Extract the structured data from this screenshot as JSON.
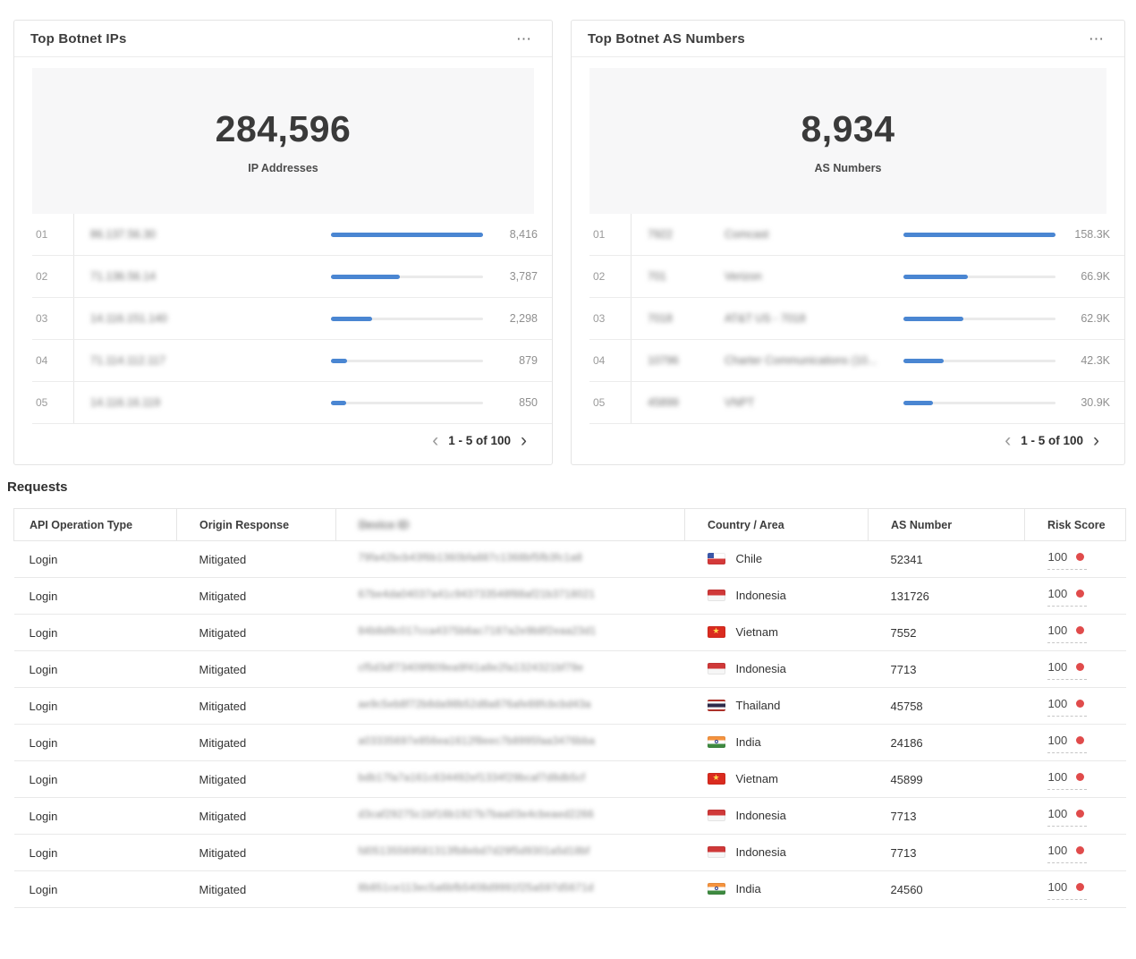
{
  "colors": {
    "accent_blue": "#4a86d2",
    "risk_red": "#e04b4b",
    "stat_bg": "#f7f7f8"
  },
  "panels": [
    {
      "title": "Top Botnet IPs",
      "menu_icon": "⋯",
      "stat_value": "284,596",
      "stat_label": "IP Addresses",
      "pagination": "1 - 5 of 100",
      "prev_icon": "‹",
      "next_icon": "›",
      "rows": [
        {
          "rank": "01",
          "label_blurred": "86.137.56.30",
          "value": "8,416",
          "pct": 100
        },
        {
          "rank": "02",
          "label_blurred": "71.136.56.14",
          "value": "3,787",
          "pct": 45
        },
        {
          "rank": "03",
          "label_blurred": "14.116.151.140",
          "value": "2,298",
          "pct": 27.3
        },
        {
          "rank": "04",
          "label_blurred": "71.114.112.117",
          "value": "879",
          "pct": 10.4
        },
        {
          "rank": "05",
          "label_blurred": "14.116.16.119",
          "value": "850",
          "pct": 10.1
        }
      ]
    },
    {
      "title": "Top Botnet AS Numbers",
      "menu_icon": "⋯",
      "stat_value": "8,934",
      "stat_label": "AS Numbers",
      "pagination": "1 - 5 of 100",
      "prev_icon": "‹",
      "next_icon": "›",
      "rows": [
        {
          "rank": "01",
          "asn_blurred": "7922",
          "name_blurred": "Comcast",
          "value": "158.3K",
          "pct": 100
        },
        {
          "rank": "02",
          "asn_blurred": "701",
          "name_blurred": "Verizon",
          "value": "66.9K",
          "pct": 42.3
        },
        {
          "rank": "03",
          "asn_blurred": "7018",
          "name_blurred": "AT&T US - 7018",
          "value": "62.9K",
          "pct": 39.7
        },
        {
          "rank": "04",
          "asn_blurred": "10796",
          "name_blurred": "Charter Communications (10...",
          "value": "42.3K",
          "pct": 26.7
        },
        {
          "rank": "05",
          "asn_blurred": "45899",
          "name_blurred": "VNPT",
          "value": "30.9K",
          "pct": 19.5
        }
      ]
    }
  ],
  "requests": {
    "heading": "Requests",
    "columns": [
      {
        "label": "API Operation Type",
        "blurred": false
      },
      {
        "label": "Origin Response",
        "blurred": false
      },
      {
        "label": "Device ID",
        "blurred": true
      },
      {
        "label": "Country / Area",
        "blurred": false
      },
      {
        "label": "AS Number",
        "blurred": false
      },
      {
        "label": "Risk Score",
        "blurred": false
      }
    ],
    "rows": [
      {
        "operation": "Login",
        "response": "Mitigated",
        "device_id_blurred": "79fa42bcb43f6b1360bfa887c1368bf5fb3fc1a8",
        "flag": "cl",
        "country": "Chile",
        "as_number": "52341",
        "risk_score": "100"
      },
      {
        "operation": "Login",
        "response": "Mitigated",
        "device_id_blurred": "67be4da04037a41c943733548f88af21b3718021",
        "flag": "id",
        "country": "Indonesia",
        "as_number": "131726",
        "risk_score": "100"
      },
      {
        "operation": "Login",
        "response": "Mitigated",
        "device_id_blurred": "84b8d9c017cca4375b6ac7187a2e9b8f2eaa23d1",
        "flag": "vn",
        "country": "Vietnam",
        "as_number": "7552",
        "risk_score": "100"
      },
      {
        "operation": "Login",
        "response": "Mitigated",
        "device_id_blurred": "cf5d3df73409f809ea9f41a8e2fa1324321bf79e",
        "flag": "id",
        "country": "Indonesia",
        "as_number": "7713",
        "risk_score": "100"
      },
      {
        "operation": "Login",
        "response": "Mitigated",
        "device_id_blurred": "ae9c5eb8f72b8da98b52d8a876afe88fcbcbd43a",
        "flag": "th",
        "country": "Thailand",
        "as_number": "45758",
        "risk_score": "100"
      },
      {
        "operation": "Login",
        "response": "Mitigated",
        "device_id_blurred": "a03335697e856ea1612f8eec7b8995faa3476bba",
        "flag": "in",
        "country": "India",
        "as_number": "24186",
        "risk_score": "100"
      },
      {
        "operation": "Login",
        "response": "Mitigated",
        "device_id_blurred": "bdb17fa7a161c634492ef1334f29bcaf7d8db5cf",
        "flag": "vn",
        "country": "Vietnam",
        "as_number": "45899",
        "risk_score": "100"
      },
      {
        "operation": "Login",
        "response": "Mitigated",
        "device_id_blurred": "d3caf29275c1bf16b1927b7baa03e4cbeaed2266",
        "flag": "id",
        "country": "Indonesia",
        "as_number": "7713",
        "risk_score": "100"
      },
      {
        "operation": "Login",
        "response": "Mitigated",
        "device_id_blurred": "fd05135569581313fb8ebd7d29f5d9301a5d18bf",
        "flag": "id",
        "country": "Indonesia",
        "as_number": "7713",
        "risk_score": "100"
      },
      {
        "operation": "Login",
        "response": "Mitigated",
        "device_id_blurred": "8b851ce113ec5a6bfb5408d9991f25a597d5671d",
        "flag": "in",
        "country": "India",
        "as_number": "24560",
        "risk_score": "100"
      }
    ]
  },
  "chart_data": [
    {
      "type": "bar",
      "title": "Top Botnet IPs",
      "total": 284596,
      "total_label": "IP Addresses",
      "categories": [
        "01",
        "02",
        "03",
        "04",
        "05"
      ],
      "values": [
        8416,
        3787,
        2298,
        879,
        850
      ],
      "item_labels_blurred": true,
      "page_range": "1 - 5 of 100",
      "orientation": "horizontal",
      "bar_color": "#4a86d2"
    },
    {
      "type": "bar",
      "title": "Top Botnet AS Numbers",
      "total": 8934,
      "total_label": "AS Numbers",
      "categories": [
        "Comcast",
        "Verizon",
        "AT&T US - 7018",
        "Charter Communications (10...",
        "VNPT"
      ],
      "values": [
        158300,
        66900,
        62900,
        42300,
        30900
      ],
      "value_labels": [
        "158.3K",
        "66.9K",
        "62.9K",
        "42.3K",
        "30.9K"
      ],
      "item_labels_blurred": true,
      "page_range": "1 - 5 of 100",
      "orientation": "horizontal",
      "bar_color": "#4a86d2"
    }
  ]
}
